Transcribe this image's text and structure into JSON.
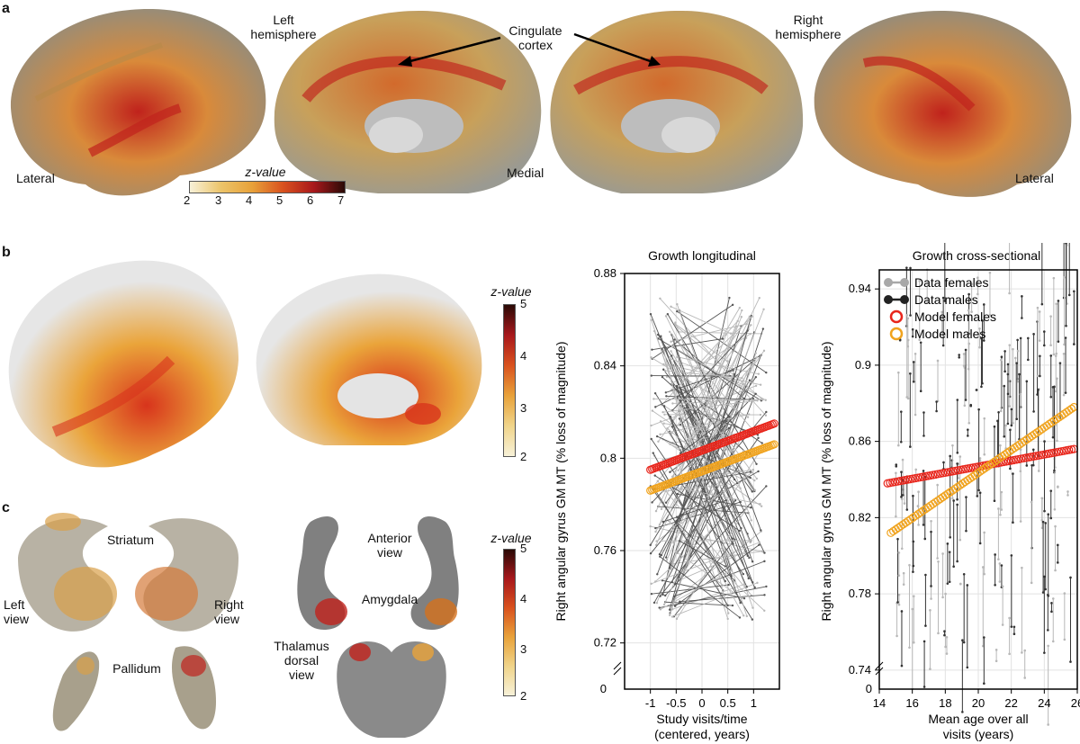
{
  "panels": {
    "a": "a",
    "b": "b",
    "c": "c"
  },
  "panel_a": {
    "left_hemisphere": "Left\nhemisphere",
    "right_hemisphere": "Right\nhemisphere",
    "cingulate": "Cingulate\ncortex",
    "lateral_left": "Lateral",
    "lateral_right": "Lateral",
    "medial": "Medial",
    "colorbar_title": "z-value",
    "colorbar_ticks": [
      "2",
      "3",
      "4",
      "5",
      "6",
      "7"
    ]
  },
  "panel_b": {
    "colorbar_title": "z-value",
    "colorbar_ticks": [
      "5",
      "4",
      "3",
      "2"
    ]
  },
  "panel_c": {
    "striatum": "Striatum",
    "left_view": "Left\nview",
    "right_view": "Right\nview",
    "anterior_view": "Anterior\nview",
    "amygdala": "Amygdala",
    "pallidum": "Pallidum",
    "thalamus": "Thalamus\ndorsal\nview",
    "colorbar_title": "z-value",
    "colorbar_ticks": [
      "5",
      "4",
      "3",
      "2"
    ]
  },
  "colors": {
    "heat_low": "#f7f1d8",
    "heat_mid": "#e8a23a",
    "heat_high": "#c0221c",
    "heat_max": "#2a0a06",
    "model_females": "#e8261c",
    "model_males": "#f0a31e",
    "data_females": "#a8a8a8",
    "data_males": "#222222"
  },
  "chart_data": [
    {
      "type": "line",
      "title": "Growth longitudinal",
      "xlabel": "Study visits/time\n(centered, years)",
      "ylabel": "Right angular gyrus GM MT (% loss of magnitude)",
      "xlim": [
        -1.5,
        1.5
      ],
      "ylim": [
        0.7,
        0.88
      ],
      "xticks": [
        "-1",
        "-0.5",
        "0",
        "0.5",
        "1"
      ],
      "yticks": [
        "0.72",
        "0.76",
        "0.8",
        "0.84",
        "0.88"
      ],
      "y_origin_label": "0",
      "series": [
        {
          "name": "Model females",
          "x": [
            -1.0,
            1.4
          ],
          "y": [
            0.795,
            0.815
          ]
        },
        {
          "name": "Model males",
          "x": [
            -1.0,
            1.4
          ],
          "y": [
            0.786,
            0.806
          ]
        }
      ],
      "grid": true
    },
    {
      "type": "scatter",
      "title": "Growth cross-sectional",
      "xlabel": "Mean age over all\nvisits (years)",
      "ylabel": "Right angular gyrus GM MT (% loss of magnitude)",
      "xlim": [
        14,
        26
      ],
      "ylim": [
        0.73,
        0.95
      ],
      "xticks": [
        "14",
        "16",
        "18",
        "20",
        "22",
        "24",
        "26"
      ],
      "yticks": [
        "0.74",
        "0.78",
        "0.82",
        "0.86",
        "0.9",
        "0.94"
      ],
      "y_origin_label": "0",
      "legend": [
        "Data females",
        "Data males",
        "Model females",
        "Model males"
      ],
      "legend_position": "top-left",
      "series": [
        {
          "name": "Model females",
          "x": [
            14.5,
            25.8
          ],
          "y": [
            0.838,
            0.856
          ]
        },
        {
          "name": "Model males",
          "x": [
            14.7,
            25.8
          ],
          "y": [
            0.812,
            0.878
          ]
        }
      ],
      "grid": true
    }
  ]
}
